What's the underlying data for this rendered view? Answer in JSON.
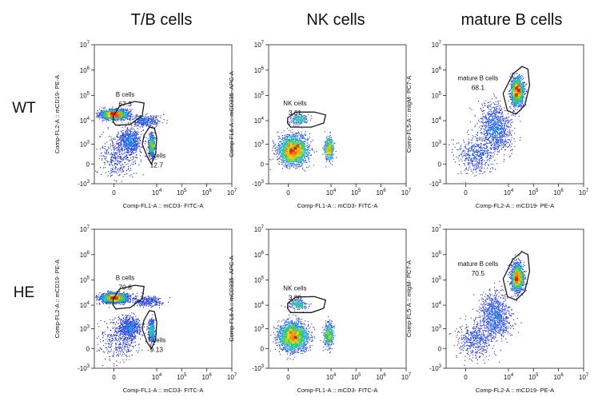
{
  "column_titles": [
    "T/B cells",
    "NK cells",
    "mature B cells"
  ],
  "row_labels": [
    "WT",
    "HE"
  ],
  "chart_data": [
    {
      "type": "scatter",
      "row": "WT",
      "column": "T/B cells",
      "xlabel": "Comp-FL1-A :: mCD3- FITC-A",
      "ylabel": "Comp-FL2-A :: mCD19- PE-A",
      "xlim": [
        -20,
        10000000.0
      ],
      "ylim": [
        -20,
        10000000.0
      ],
      "scale": "biexponential",
      "x_ticks": [
        "0",
        "10^4",
        "10^5",
        "10^6",
        "10^7"
      ],
      "y_ticks": [
        "-10^3",
        "0",
        "10^3",
        "10^4",
        "10^5",
        "10^6",
        "10^7"
      ],
      "populations": [
        {
          "x": 0,
          "y": 18000,
          "n": 2200,
          "sx": 0.26,
          "sy": 0.09
        },
        {
          "x": 600,
          "y": 1500,
          "n": 700,
          "sx": 0.22,
          "sy": 0.22
        },
        {
          "x": 6000,
          "y": 900,
          "n": 650,
          "sx": 0.06,
          "sy": 0.22
        },
        {
          "x": 3000,
          "y": 10000,
          "n": 350,
          "sx": 0.3,
          "sy": 0.12
        },
        {
          "x": 100,
          "y": 200,
          "n": 400,
          "sx": 0.4,
          "sy": 0.4
        }
      ],
      "gates": [
        {
          "name": "B cells",
          "percent": "67.3",
          "polygon": [
            [
              -12,
              15000
            ],
            [
              150,
              40000
            ],
            [
              1200,
              58000
            ],
            [
              3000,
              50000
            ],
            [
              2500,
              16000
            ],
            [
              700,
              7000
            ],
            [
              40,
              6500
            ],
            [
              -15,
              9000
            ]
          ]
        },
        {
          "name": "T cells",
          "percent": "12.7",
          "polygon": [
            [
              3000,
              2500
            ],
            [
              5000,
              5500
            ],
            [
              8000,
              5000
            ],
            [
              10000,
              2000
            ],
            [
              9000,
              300
            ],
            [
              6000,
              0
            ],
            [
              4000,
              200
            ],
            [
              2500,
              1000
            ]
          ]
        }
      ]
    },
    {
      "type": "scatter",
      "row": "WT",
      "column": "NK cells",
      "xlabel": "Comp-FL1-A :: mCD3- FITC-A",
      "ylabel": "Comp-FL6-A :: mCD335- APC-A",
      "xlim": [
        -20,
        10000000.0
      ],
      "ylim": [
        -20,
        10000000.0
      ],
      "scale": "biexponential",
      "x_ticks": [
        "0",
        "10^4",
        "10^5",
        "10^6",
        "10^7"
      ],
      "y_ticks": [
        "-10^3",
        "0",
        "10^3",
        "10^4",
        "10^5",
        "10^6",
        "10^7"
      ],
      "populations": [
        {
          "x": 100,
          "y": 500,
          "n": 2400,
          "sx": 0.28,
          "sy": 0.28
        },
        {
          "x": 8000,
          "y": 600,
          "n": 500,
          "sx": 0.09,
          "sy": 0.22
        },
        {
          "x": 300,
          "y": 12000,
          "n": 220,
          "sx": 0.18,
          "sy": 0.1
        }
      ],
      "gates": [
        {
          "name": "NK cells",
          "percent": "3.61",
          "polygon": [
            [
              -8,
              13000
            ],
            [
              200,
              22000
            ],
            [
              2000,
              22000
            ],
            [
              6000,
              17000
            ],
            [
              5000,
              8000
            ],
            [
              1500,
              5500
            ],
            [
              50,
              5500
            ],
            [
              -12,
              8000
            ]
          ]
        }
      ]
    },
    {
      "type": "scatter",
      "row": "WT",
      "column": "mature B cells",
      "xlabel": "Comp-FL2-A :: mCD19- PE-A",
      "ylabel": "Comp-FL5-A :: mIgM- PC7-A",
      "xlim": [
        -20,
        10000000.0
      ],
      "ylim": [
        -20,
        10000000.0
      ],
      "scale": "biexponential",
      "x_ticks": [
        "0",
        "10^4",
        "10^5",
        "10^6",
        "10^7"
      ],
      "y_ticks": [
        "-10^3",
        "0",
        "10^3",
        "10^4",
        "10^5",
        "10^6",
        "10^7"
      ],
      "populations": [
        {
          "x": 22000,
          "y": 150000,
          "n": 1700,
          "sx": 0.12,
          "sy": 0.26
        },
        {
          "x": 2500,
          "y": 8000,
          "n": 700,
          "sx": 0.3,
          "sy": 0.4
        },
        {
          "x": 300,
          "y": 300,
          "n": 500,
          "sx": 0.35,
          "sy": 0.35
        },
        {
          "x": 4000,
          "y": 2000,
          "n": 300,
          "sx": 0.3,
          "sy": 0.3
        }
      ],
      "gates": [
        {
          "name": "mature B cells",
          "percent": "68.1",
          "polygon": [
            [
              6000,
              120000
            ],
            [
              15000,
              700000
            ],
            [
              35000,
              1400000
            ],
            [
              60000,
              1100000
            ],
            [
              70000,
              250000
            ],
            [
              45000,
              40000
            ],
            [
              20000,
              18000
            ],
            [
              9000,
              25000
            ]
          ]
        }
      ]
    },
    {
      "type": "scatter",
      "row": "HE",
      "column": "T/B cells",
      "xlabel": "Comp-FL1-A :: mCD3- FITC-A",
      "ylabel": "Comp-FL2-A :: mCD19- PE-A",
      "xlim": [
        -20,
        10000000.0
      ],
      "ylim": [
        -20,
        10000000.0
      ],
      "scale": "biexponential",
      "x_ticks": [
        "0",
        "10^4",
        "10^5",
        "10^6",
        "10^7"
      ],
      "y_ticks": [
        "-10^3",
        "0",
        "10^3",
        "10^4",
        "10^5",
        "10^6",
        "10^7"
      ],
      "populations": [
        {
          "x": 0,
          "y": 20000,
          "n": 2300,
          "sx": 0.26,
          "sy": 0.09
        },
        {
          "x": 600,
          "y": 1200,
          "n": 650,
          "sx": 0.22,
          "sy": 0.22
        },
        {
          "x": 6000,
          "y": 800,
          "n": 500,
          "sx": 0.06,
          "sy": 0.22
        },
        {
          "x": 4000,
          "y": 15000,
          "n": 300,
          "sx": 0.3,
          "sy": 0.1
        },
        {
          "x": 100,
          "y": 200,
          "n": 350,
          "sx": 0.4,
          "sy": 0.4
        }
      ],
      "gates": [
        {
          "name": "B cells",
          "percent": "70.8",
          "polygon": [
            [
              -12,
              18000
            ],
            [
              150,
              45000
            ],
            [
              1200,
              62000
            ],
            [
              3000,
              55000
            ],
            [
              2500,
              18000
            ],
            [
              700,
              8000
            ],
            [
              40,
              7000
            ],
            [
              -15,
              10000
            ]
          ]
        },
        {
          "name": "T cells",
          "percent": "9.13",
          "polygon": [
            [
              3000,
              2500
            ],
            [
              5000,
              6000
            ],
            [
              8000,
              5500
            ],
            [
              10000,
              2000
            ],
            [
              9000,
              250
            ],
            [
              6000,
              -5
            ],
            [
              4000,
              150
            ],
            [
              2500,
              1000
            ]
          ]
        }
      ]
    },
    {
      "type": "scatter",
      "row": "HE",
      "column": "NK cells",
      "xlabel": "Comp-FL1-A :: mCD3- FITC-A",
      "ylabel": "Comp-FL6-A :: mCD335- APC-A",
      "xlim": [
        -20,
        10000000.0
      ],
      "ylim": [
        -20,
        10000000.0
      ],
      "scale": "biexponential",
      "x_ticks": [
        "0",
        "10^4",
        "10^5",
        "10^6",
        "10^7"
      ],
      "y_ticks": [
        "-10^3",
        "0",
        "10^3",
        "10^4",
        "10^5",
        "10^6",
        "10^7"
      ],
      "populations": [
        {
          "x": 100,
          "y": 400,
          "n": 2400,
          "sx": 0.28,
          "sy": 0.28
        },
        {
          "x": 8000,
          "y": 500,
          "n": 450,
          "sx": 0.09,
          "sy": 0.22
        },
        {
          "x": 300,
          "y": 11000,
          "n": 230,
          "sx": 0.18,
          "sy": 0.1
        }
      ],
      "gates": [
        {
          "name": "NK cells",
          "percent": "3.86",
          "polygon": [
            [
              -8,
              12000
            ],
            [
              200,
              21000
            ],
            [
              2000,
              22000
            ],
            [
              6000,
              16000
            ],
            [
              5000,
              7500
            ],
            [
              1500,
              5000
            ],
            [
              50,
              5000
            ],
            [
              -12,
              7500
            ]
          ]
        }
      ]
    },
    {
      "type": "scatter",
      "row": "HE",
      "column": "mature B cells",
      "xlabel": "Comp-FL2-A :: mCD19- PE-A",
      "ylabel": "Comp-FL5-A :: mIgM- PC7-A",
      "xlim": [
        -20,
        10000000.0
      ],
      "ylim": [
        -20,
        10000000.0
      ],
      "scale": "biexponential",
      "x_ticks": [
        "0",
        "10^4",
        "10^5",
        "10^6",
        "10^7"
      ],
      "y_ticks": [
        "-10^3",
        "0",
        "10^3",
        "10^4",
        "10^5",
        "10^6",
        "10^7"
      ],
      "populations": [
        {
          "x": 22000,
          "y": 130000,
          "n": 1700,
          "sx": 0.12,
          "sy": 0.26
        },
        {
          "x": 2500,
          "y": 6000,
          "n": 650,
          "sx": 0.3,
          "sy": 0.4
        },
        {
          "x": 300,
          "y": 250,
          "n": 500,
          "sx": 0.35,
          "sy": 0.35
        },
        {
          "x": 4000,
          "y": 1500,
          "n": 300,
          "sx": 0.3,
          "sy": 0.3
        }
      ],
      "gates": [
        {
          "name": "mature B cells",
          "percent": "70.5",
          "polygon": [
            [
              6000,
              110000
            ],
            [
              15000,
              650000
            ],
            [
              35000,
              1300000
            ],
            [
              60000,
              1000000
            ],
            [
              70000,
              220000
            ],
            [
              45000,
              35000
            ],
            [
              20000,
              16000
            ],
            [
              9000,
              22000
            ]
          ]
        }
      ]
    }
  ]
}
